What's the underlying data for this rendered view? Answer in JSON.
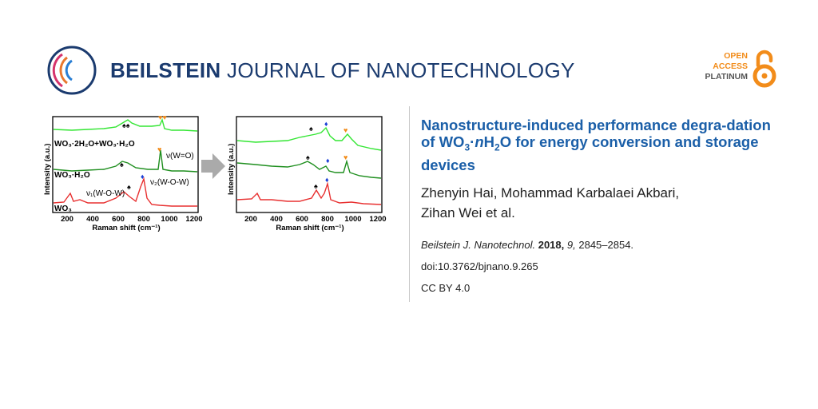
{
  "header": {
    "journal_bold": "BEILSTEIN",
    "journal_rest": "JOURNAL OF NANOTECHNOLOGY",
    "oa_open": "OPEN",
    "oa_access": "ACCESS",
    "oa_platinum": "PLATINUM"
  },
  "graphic": {
    "left_xlabel": "Raman shift (cm⁻¹)",
    "right_xlabel": "Raman shift (cm⁻¹)",
    "ylabel": "Intensity (a.u.)",
    "ticks": [
      "200",
      "400",
      "600",
      "800",
      "1000",
      "1200"
    ],
    "label_mix": "WO₃·2H₂O+WO₃·H₂O",
    "label_h2o": "WO₃·H₂O",
    "label_wo3": "WO₃",
    "label_nu_wo": "ν(W=O)",
    "label_nu2": "ν₂(W-O-W)",
    "label_nu1": "ν₁(W-O-W)",
    "colors": {
      "light_green": "#33e633",
      "dark_green": "#1f8f1f",
      "red": "#e83030",
      "diamond": "#1a3fd6",
      "heart": "#f28c1a"
    }
  },
  "article": {
    "title_part1": "Nanostructure-induced performance degra-dation of WO",
    "title_sub1": "3",
    "title_middot": "·",
    "title_n": "n",
    "title_h": "H",
    "title_sub2": "2",
    "title_part2": "O for energy conversion and storage devices",
    "authors_line1": "Zhenyin Hai, Mohammad Karbalaei Akbari,",
    "authors_line2": "Zihan Wei et al.",
    "citation_journal": "Beilstein J. Nanotechnol.",
    "citation_year": "2018,",
    "citation_volume": "9,",
    "citation_pages": "2845–2854.",
    "doi": "doi:10.3762/bjnano.9.265",
    "license": "CC BY 4.0"
  }
}
